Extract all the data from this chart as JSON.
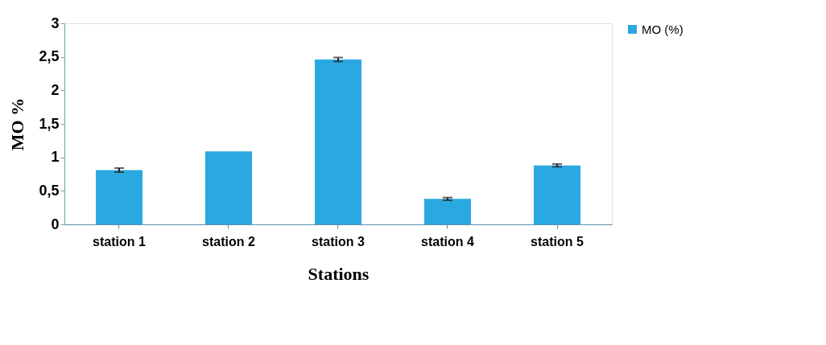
{
  "chart_data": {
    "type": "bar",
    "xlabel": "Stations",
    "ylabel": "MO %",
    "categories": [
      "station 1",
      "station 2",
      "station 3",
      "station 4",
      "station 5"
    ],
    "series": [
      {
        "name": "MO (%)",
        "color": "#2aa9e0",
        "values": [
          0.81,
          1.09,
          2.46,
          0.38,
          0.88
        ],
        "errors": [
          0.03,
          null,
          0.03,
          0.02,
          0.02
        ]
      }
    ],
    "ylim": [
      0,
      3
    ],
    "yticks": [
      0,
      {
        "value": 0.5,
        "label": "0,5"
      },
      1,
      {
        "value": 1.5,
        "label": "1,5"
      },
      2,
      {
        "value": 2.5,
        "label": "2,5"
      },
      3
    ],
    "grid": false,
    "legend": "right"
  }
}
